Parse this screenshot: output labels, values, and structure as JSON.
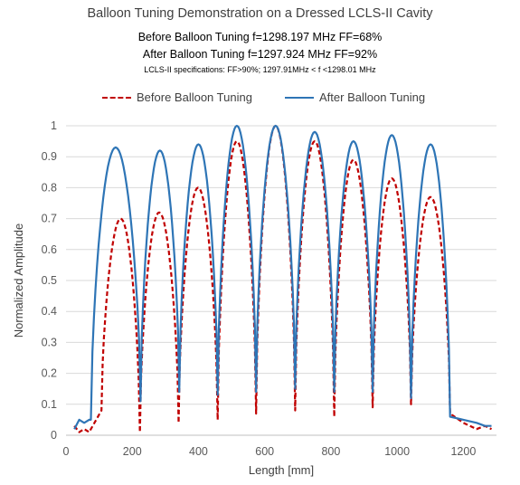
{
  "chart_data": {
    "type": "line",
    "title": "Balloon Tuning Demonstration on a Dressed LCLS-II Cavity",
    "subtitles": [
      "Before Balloon Tuning f=1298.197 MHz FF=68%",
      "After Balloon Tuning f=1297.924 MHz FF=92%",
      "LCLS-II specifications: FF>90%; 1297.91MHz < f <1298.01 MHz"
    ],
    "xlabel": "Length [mm]",
    "ylabel": "Normalized Amplitude",
    "xlim": [
      0,
      1300
    ],
    "ylim": [
      0,
      1
    ],
    "xticks": [
      0,
      200,
      400,
      600,
      800,
      1000,
      1200
    ],
    "yticks": [
      0,
      0.1,
      0.2,
      0.3,
      0.4,
      0.5,
      0.6,
      0.7,
      0.8,
      0.9,
      1
    ],
    "grid": "horizontal",
    "legend_position": "top",
    "series": [
      {
        "name": "Before Balloon Tuning",
        "color": "#c00000",
        "style": "dashed",
        "start": [
          [
            25,
            0.03
          ],
          [
            40,
            0.01
          ],
          [
            55,
            0.02
          ],
          [
            70,
            0.01
          ]
        ],
        "nodes": [
          [
            107,
            0.08
          ],
          [
            223,
            0.01
          ],
          [
            340,
            0.04
          ],
          [
            458,
            0.05
          ],
          [
            574,
            0.07
          ],
          [
            692,
            0.08
          ],
          [
            810,
            0.06
          ],
          [
            926,
            0.09
          ],
          [
            1042,
            0.1
          ],
          [
            1160,
            0.07
          ]
        ],
        "peaks": [
          [
            168,
            0.7
          ],
          [
            285,
            0.72
          ],
          [
            400,
            0.8
          ],
          [
            515,
            0.95
          ],
          [
            633,
            1.0
          ],
          [
            750,
            0.95
          ],
          [
            865,
            0.89
          ],
          [
            980,
            0.83
          ],
          [
            1095,
            0.77
          ]
        ],
        "end": [
          [
            1200,
            0.04
          ],
          [
            1240,
            0.02
          ],
          [
            1265,
            0.03
          ],
          [
            1285,
            0.02
          ]
        ]
      },
      {
        "name": "After Balloon Tuning",
        "color": "#2e75b6",
        "style": "solid",
        "start": [
          [
            25,
            0.02
          ],
          [
            40,
            0.05
          ],
          [
            55,
            0.04
          ],
          [
            70,
            0.05
          ]
        ],
        "nodes": [
          [
            75,
            0.05
          ],
          [
            225,
            0.11
          ],
          [
            342,
            0.14
          ],
          [
            458,
            0.13
          ],
          [
            574,
            0.14
          ],
          [
            692,
            0.15
          ],
          [
            810,
            0.14
          ],
          [
            926,
            0.14
          ],
          [
            1042,
            0.12
          ],
          [
            1160,
            0.06
          ]
        ],
        "peaks": [
          [
            168,
            0.93
          ],
          [
            285,
            0.92
          ],
          [
            400,
            0.94
          ],
          [
            515,
            1.0
          ],
          [
            633,
            1.0
          ],
          [
            750,
            0.98
          ],
          [
            865,
            0.95
          ],
          [
            980,
            0.97
          ],
          [
            1095,
            0.94
          ]
        ],
        "end": [
          [
            1200,
            0.05
          ],
          [
            1240,
            0.04
          ],
          [
            1265,
            0.03
          ],
          [
            1285,
            0.03
          ]
        ]
      }
    ]
  }
}
